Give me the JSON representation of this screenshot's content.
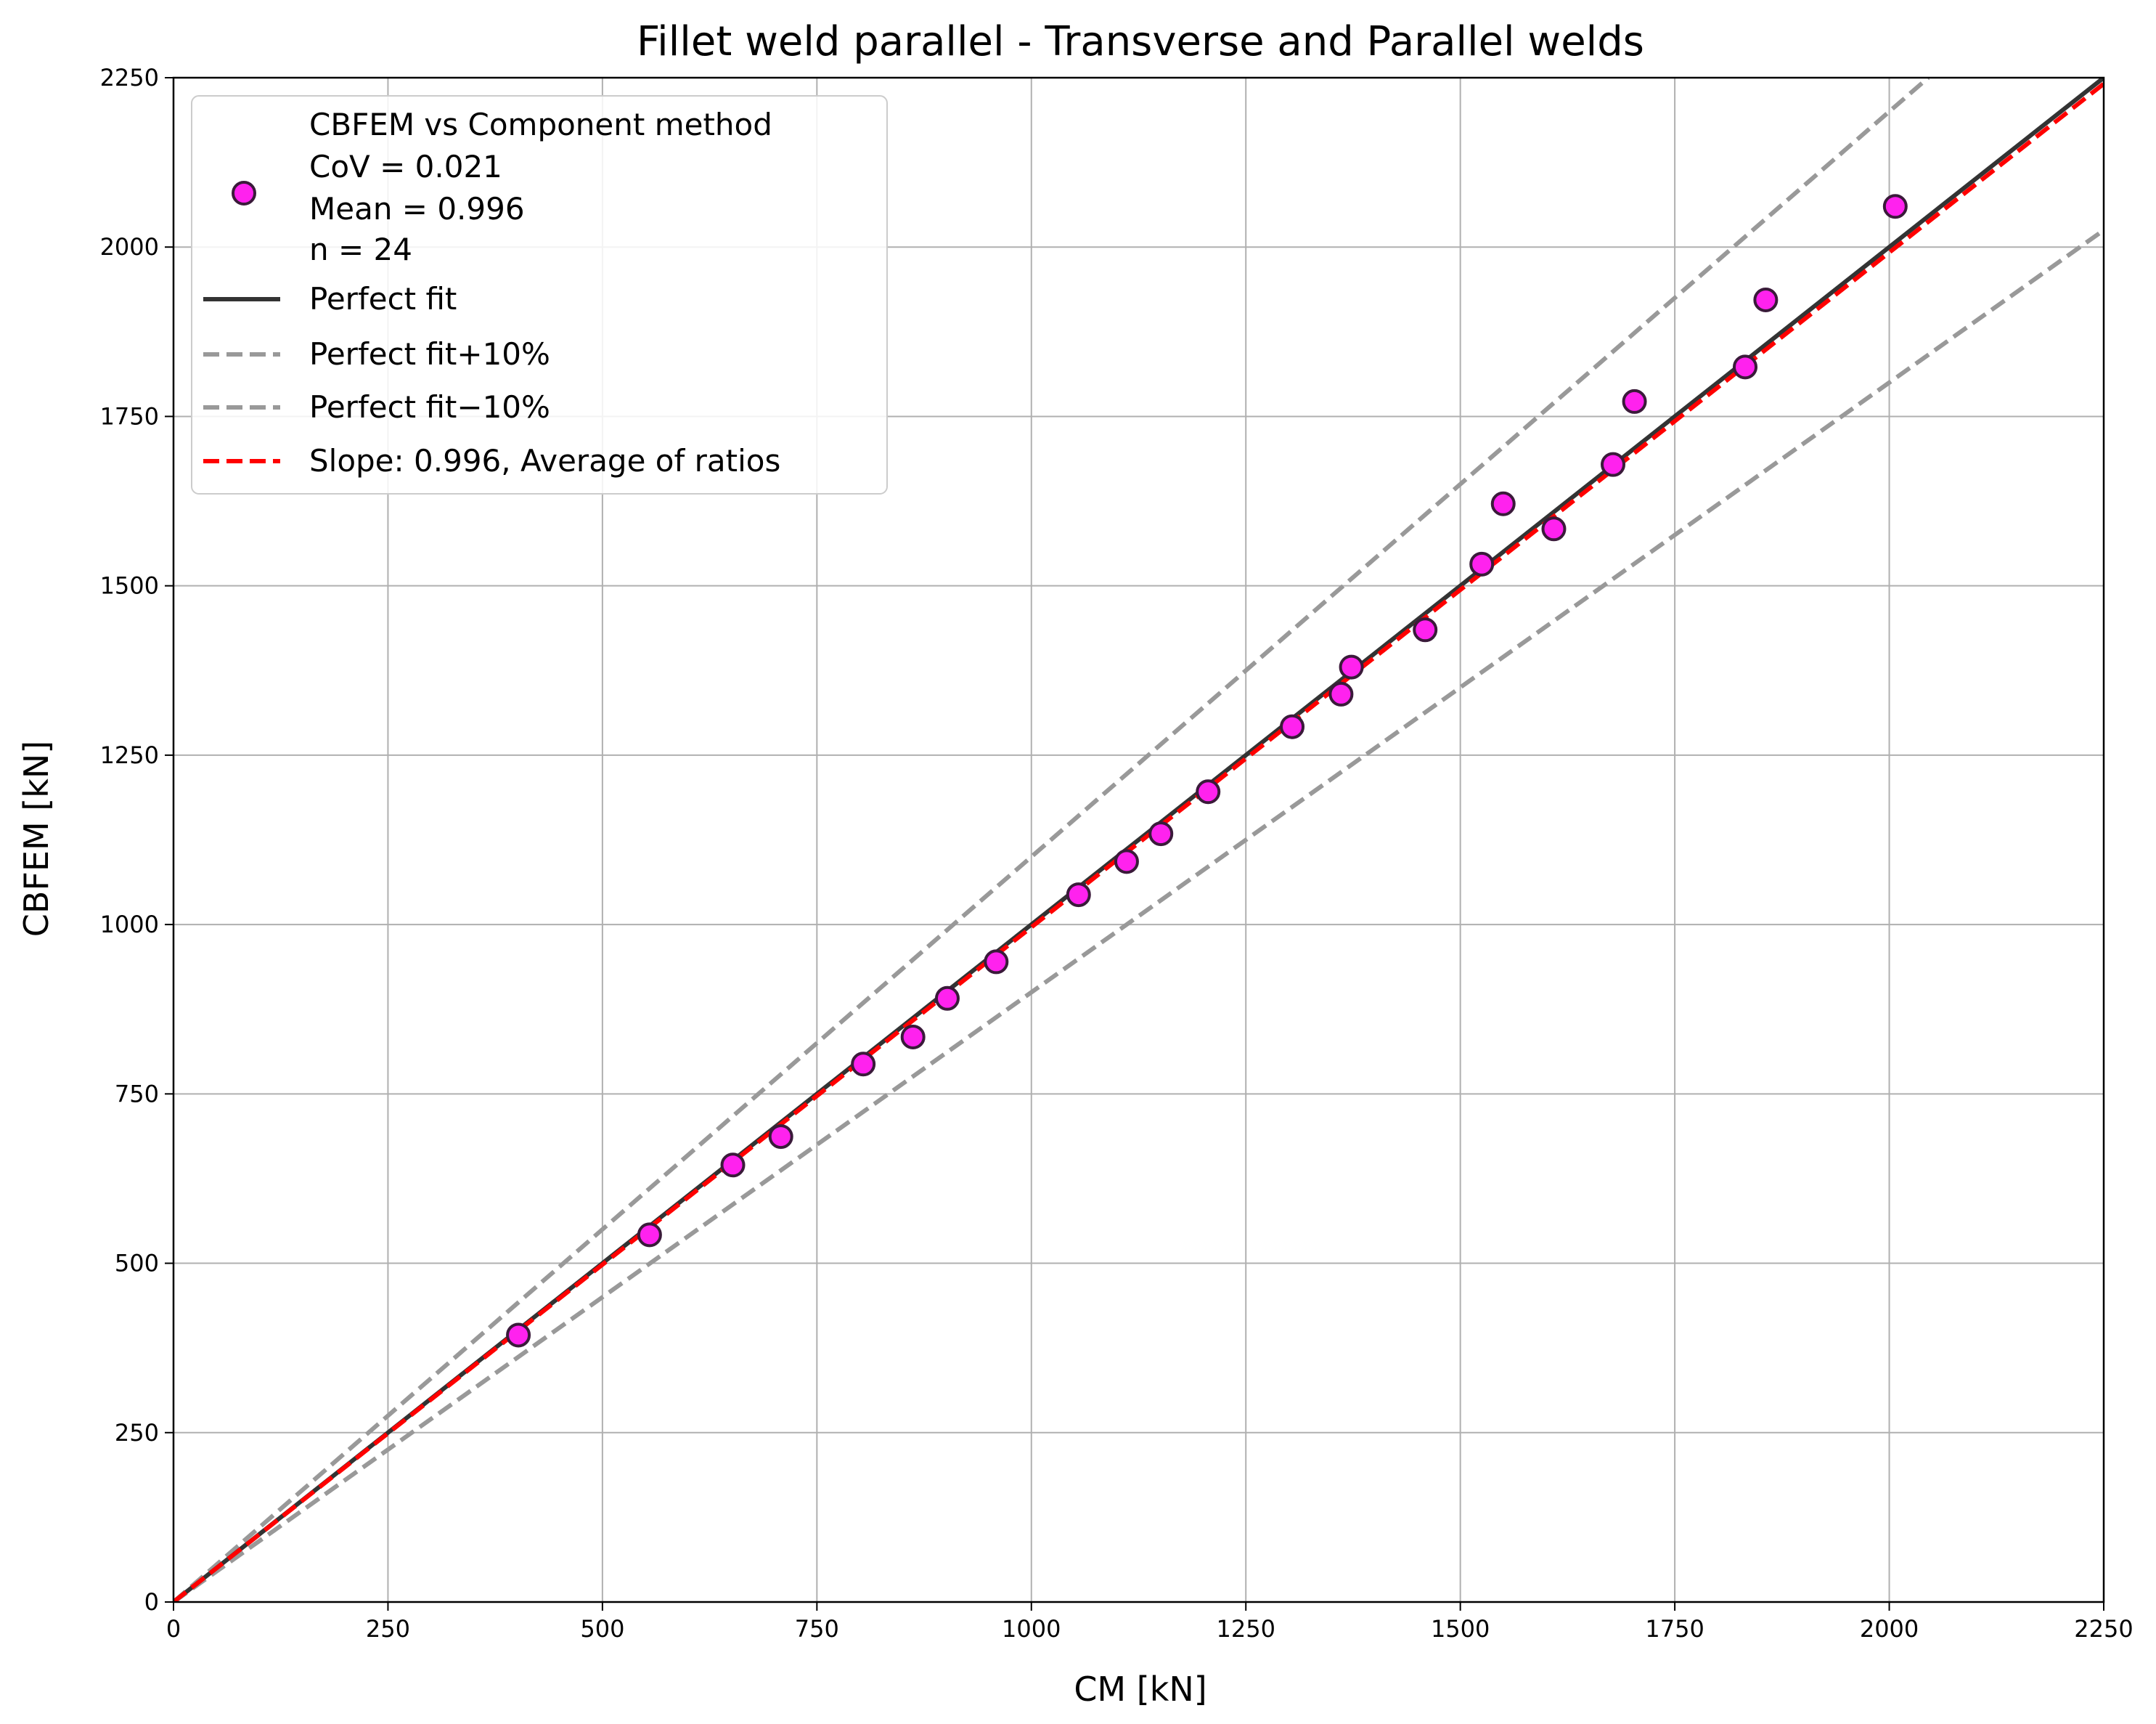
{
  "chart_data": {
    "type": "scatter",
    "title": "Fillet weld parallel - Transverse and Parallel welds",
    "xlabel": "CM [kN]",
    "ylabel": "CBFEM [kN]",
    "xlim": [
      0,
      2250
    ],
    "ylim": [
      0,
      2250
    ],
    "xticks": [
      0,
      250,
      500,
      750,
      1000,
      1250,
      1500,
      1750,
      2000,
      2250
    ],
    "yticks": [
      0,
      250,
      500,
      750,
      1000,
      1250,
      1500,
      1750,
      2000,
      2250
    ],
    "grid": true,
    "legend_position": "top-left",
    "points": [
      {
        "x": 402,
        "y": 394
      },
      {
        "x": 555,
        "y": 542
      },
      {
        "x": 652,
        "y": 645
      },
      {
        "x": 708,
        "y": 687
      },
      {
        "x": 804,
        "y": 794
      },
      {
        "x": 862,
        "y": 834
      },
      {
        "x": 902,
        "y": 891
      },
      {
        "x": 959,
        "y": 945
      },
      {
        "x": 1055,
        "y": 1044
      },
      {
        "x": 1111,
        "y": 1093
      },
      {
        "x": 1151,
        "y": 1134
      },
      {
        "x": 1206,
        "y": 1196
      },
      {
        "x": 1304,
        "y": 1292
      },
      {
        "x": 1361,
        "y": 1340
      },
      {
        "x": 1373,
        "y": 1380
      },
      {
        "x": 1459,
        "y": 1435
      },
      {
        "x": 1525,
        "y": 1532
      },
      {
        "x": 1550,
        "y": 1621
      },
      {
        "x": 1609,
        "y": 1584
      },
      {
        "x": 1678,
        "y": 1679
      },
      {
        "x": 1703,
        "y": 1772
      },
      {
        "x": 1832,
        "y": 1823
      },
      {
        "x": 1856,
        "y": 1922
      },
      {
        "x": 2007,
        "y": 2060
      }
    ],
    "series": [
      {
        "name": "Perfect fit",
        "slope": 1.0,
        "color": "#333333",
        "style": "solid"
      },
      {
        "name": "Perfect fit+10%",
        "slope": 1.1,
        "color": "#999999",
        "style": "dashed"
      },
      {
        "name": "Perfect fit−10%",
        "slope": 0.9,
        "color": "#999999",
        "style": "dashed"
      },
      {
        "name": "Slope: 0.996, Average of ratios",
        "slope": 0.996,
        "color": "#ff0000",
        "style": "dashed"
      }
    ],
    "scatter_legend": [
      "CBFEM vs Component method",
      "CoV = 0.021",
      "Mean = 0.996",
      "n = 24"
    ],
    "marker_color": "#ff22ee",
    "marker_edge_color": "#3a1a3a"
  }
}
